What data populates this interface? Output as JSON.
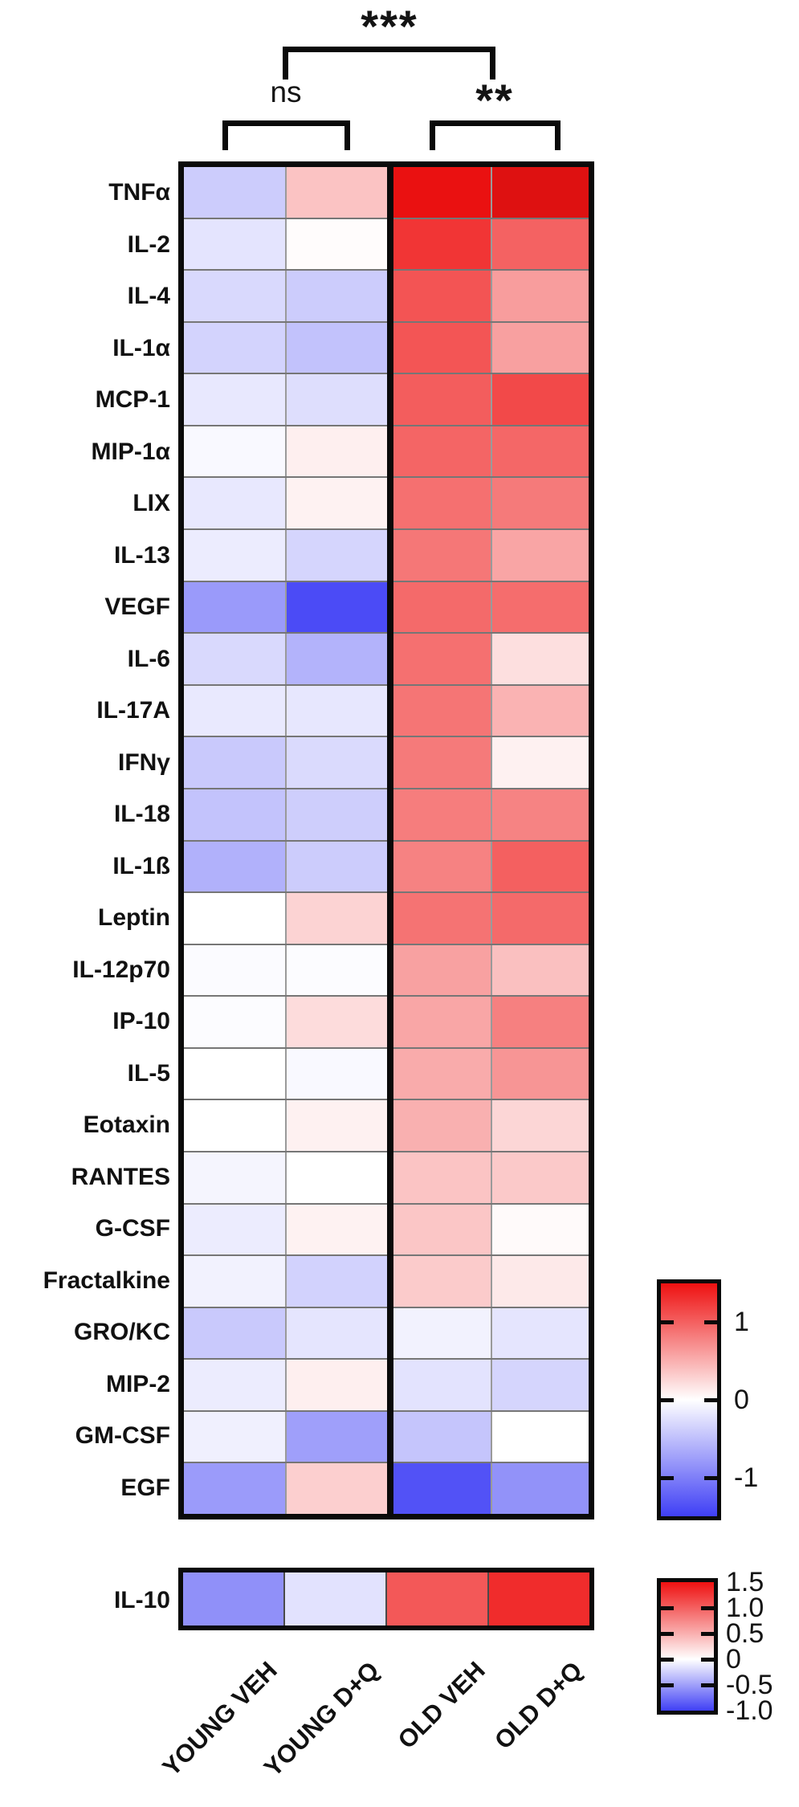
{
  "chart_data": {
    "type": "heatmap",
    "title": "",
    "columns": [
      "YOUNG VEH",
      "YOUNG D+Q",
      "OLD VEH",
      "OLD D+Q"
    ],
    "column_groups": [
      {
        "name": "YOUNG",
        "columns": [
          0,
          1
        ]
      },
      {
        "name": "OLD",
        "columns": [
          2,
          3
        ]
      }
    ],
    "rows": [
      "TNFα",
      "IL-2",
      "IL-4",
      "IL-1α",
      "MCP-1",
      "MIP-1α",
      "LIX",
      "IL-13",
      "VEGF",
      "IL-6",
      "IL-17A",
      "IFNγ",
      "IL-18",
      "IL-1ß",
      "Leptin",
      "IL-12p70",
      "IP-10",
      "IL-5",
      "Eotaxin",
      "RANTES",
      "G-CSF",
      "Fractalkine",
      "GRO/KC",
      "MIP-2",
      "GM-CSF",
      "EGF"
    ],
    "values": [
      [
        -0.4,
        0.38,
        1.55,
        1.7
      ],
      [
        -0.21,
        0.02,
        1.27,
        0.99
      ],
      [
        -0.3,
        -0.4,
        1.08,
        0.62
      ],
      [
        -0.34,
        -0.48,
        1.07,
        0.6
      ],
      [
        -0.18,
        -0.26,
        1.02,
        1.15
      ],
      [
        -0.05,
        0.1,
        0.97,
        0.96
      ],
      [
        -0.18,
        0.08,
        0.9,
        0.84
      ],
      [
        -0.15,
        -0.33,
        0.86,
        0.57
      ],
      [
        -0.79,
        -1.41,
        0.94,
        0.92
      ],
      [
        -0.3,
        -0.59,
        0.9,
        0.2
      ],
      [
        -0.17,
        -0.19,
        0.87,
        0.48
      ],
      [
        -0.42,
        -0.29,
        0.84,
        0.09
      ],
      [
        -0.47,
        -0.38,
        0.82,
        0.78
      ],
      [
        -0.61,
        -0.4,
        0.79,
        1.0
      ],
      [
        0.0,
        0.28,
        0.88,
        0.94
      ],
      [
        -0.03,
        -0.02,
        0.59,
        0.4
      ],
      [
        -0.02,
        0.22,
        0.56,
        0.8
      ],
      [
        0.0,
        -0.05,
        0.53,
        0.67
      ],
      [
        0.0,
        0.09,
        0.5,
        0.26
      ],
      [
        -0.08,
        0.0,
        0.37,
        0.34
      ],
      [
        -0.15,
        0.08,
        0.36,
        0.03
      ],
      [
        -0.1,
        -0.35,
        0.33,
        0.14
      ],
      [
        -0.42,
        -0.2,
        -0.1,
        -0.2
      ],
      [
        -0.15,
        0.1,
        -0.22,
        -0.33
      ],
      [
        -0.12,
        -0.75,
        -0.45,
        0.0
      ],
      [
        -0.78,
        0.3,
        -1.35,
        -0.85
      ]
    ],
    "separate_row": {
      "name": "IL-10",
      "values": [
        -0.58,
        -0.15,
        1.05,
        1.33
      ]
    },
    "value_scale": {
      "description": "relative level (z-score) by color",
      "main_range": [
        -1.5,
        1.5
      ],
      "il10_range": [
        -1.0,
        1.5
      ]
    },
    "colorbars": [
      {
        "id": "main",
        "tick_labels": [
          "1",
          "0",
          "-1"
        ],
        "tick_values": [
          1,
          0,
          -1
        ],
        "top_value": 1.5,
        "bottom_value": -1.5
      },
      {
        "id": "il10",
        "tick_labels": [
          "1.5",
          "1.0",
          "0.5",
          "0",
          "-0.5",
          "-1.0"
        ],
        "tick_values": [
          1.5,
          1.0,
          0.5,
          0,
          -0.5,
          -1.0
        ],
        "top_value": 1.5,
        "bottom_value": -1.0
      }
    ],
    "colors": {
      "max_positive": "#ee1111",
      "zero": "#ffffff",
      "max_negative": "#3f3ff5"
    },
    "annotations": {
      "young_vs_old": "***",
      "young_comparison": "ns",
      "old_comparison": "**"
    },
    "legend_position": "right",
    "grid": true
  }
}
